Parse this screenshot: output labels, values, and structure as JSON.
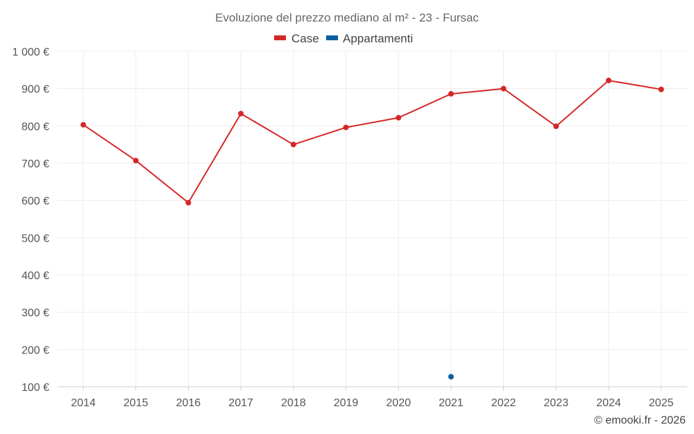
{
  "chart_data": {
    "type": "line",
    "title": "Evoluzione del prezzo mediano al m² - 23 - Fursac",
    "categories": [
      "2014",
      "2015",
      "2016",
      "2017",
      "2018",
      "2019",
      "2020",
      "2021",
      "2022",
      "2023",
      "2024",
      "2025"
    ],
    "y_tick_labels": [
      "100 €",
      "200 €",
      "300 €",
      "400 €",
      "500 €",
      "600 €",
      "700 €",
      "800 €",
      "900 €",
      "1 000 €"
    ],
    "y_tick_values": [
      100,
      200,
      300,
      400,
      500,
      600,
      700,
      800,
      900,
      1000
    ],
    "ylim": [
      100,
      1000
    ],
    "grid": true,
    "legend_position": "top-center",
    "series": [
      {
        "name": "Case",
        "color": "#d62728",
        "values": [
          803,
          707,
          594,
          833,
          750,
          796,
          822,
          886,
          900,
          799,
          922,
          898
        ]
      },
      {
        "name": "Appartamenti",
        "color": "#0b5f9e",
        "values": [
          null,
          null,
          null,
          null,
          null,
          null,
          null,
          127,
          null,
          null,
          null,
          null
        ]
      }
    ]
  },
  "credit": "© emooki.fr - 2026"
}
